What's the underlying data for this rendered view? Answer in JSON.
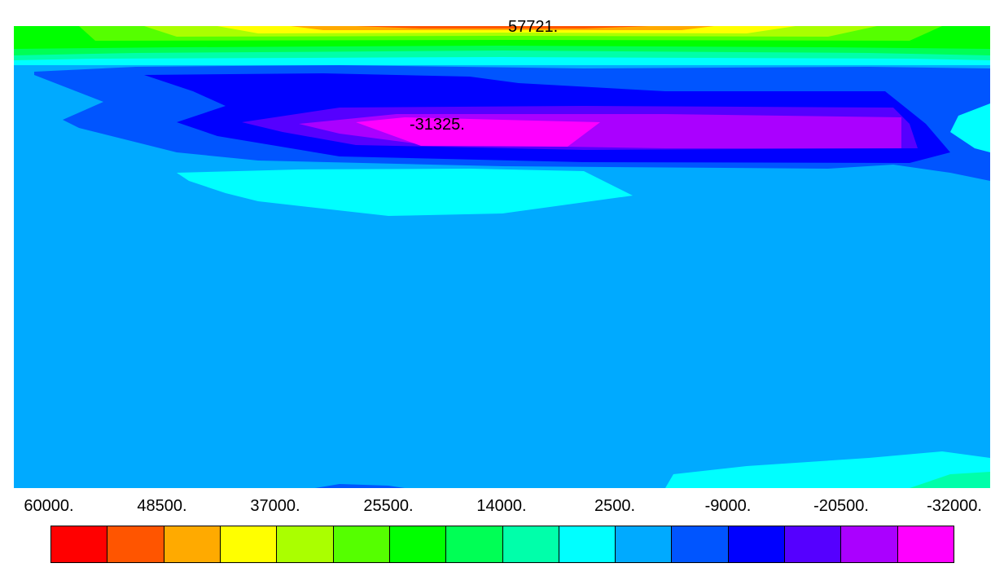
{
  "chart_data": {
    "type": "heatmap",
    "title": "",
    "xlabel": "",
    "ylabel": "",
    "annotations": {
      "max": "57721.",
      "min": "-31325."
    },
    "colorbar": {
      "tick_labels": [
        "60000.",
        "48500.",
        "37000.",
        "25500.",
        "14000.",
        "2500.",
        "-9000.",
        "-20500.",
        "-32000."
      ],
      "range": [
        60000,
        -32000
      ],
      "levels": 16,
      "colors": [
        "#ff0000",
        "#ff5500",
        "#ffaa00",
        "#ffff00",
        "#aaff00",
        "#55ff00",
        "#00ff00",
        "#00ff55",
        "#00ffaa",
        "#00ffff",
        "#00aaff",
        "#0055ff",
        "#0000ff",
        "#5500ff",
        "#aa00ff",
        "#ff00ff"
      ]
    },
    "field": {
      "background_color": "#00aaff",
      "regions": [
        "high band along top edge peaking near center",
        "deep trough (magenta) centered left of middle in upper third",
        "cyan lobe below trough",
        "cyan patch at lower right edge"
      ]
    }
  }
}
